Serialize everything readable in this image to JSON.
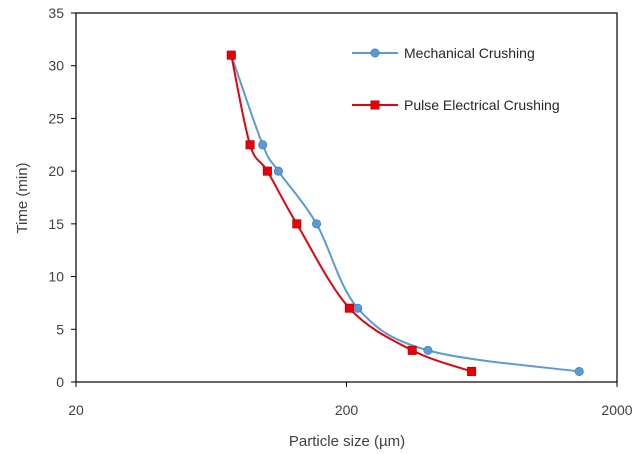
{
  "chart_data": {
    "type": "scatter",
    "title": "",
    "xlabel": "Particle size (µm)",
    "ylabel": "Time (min)",
    "xscale": "log",
    "xlim": [
      20,
      2000
    ],
    "ylim": [
      0,
      35
    ],
    "xticks": [
      20,
      200,
      2000
    ],
    "yticks": [
      0,
      5,
      10,
      15,
      20,
      25,
      30,
      35
    ],
    "grid": false,
    "legend_position": "top-right",
    "series": [
      {
        "name": "Mechanical Crushing",
        "color": "#5B9BD5",
        "marker": "circle",
        "x": [
          75,
          98,
          112,
          155,
          220,
          400,
          1450
        ],
        "y": [
          31,
          22.5,
          20,
          15,
          7,
          3,
          1
        ]
      },
      {
        "name": "Pulse Electrical Crushing",
        "color": "#E8000B",
        "marker": "square",
        "x": [
          75,
          88,
          102,
          131,
          205,
          350,
          580
        ],
        "y": [
          31,
          22.5,
          20,
          15,
          7,
          3,
          1
        ]
      }
    ]
  }
}
